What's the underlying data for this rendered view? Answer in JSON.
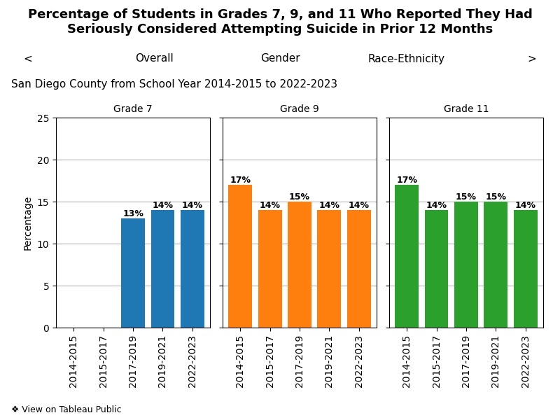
{
  "title": "Percentage of Students in Grades 7, 9, and 11 Who Reported They Had Seriously Considered Attempting Suicide in Prior 12 Months",
  "subtitle": "San Diego County from School Year 2014-2015 to 2022-2023",
  "annotations": [
    "<",
    "Overall",
    "Gender",
    "Race-Ethnicity",
    ">",
    "❖ View on Tableau Public"
  ],
  "chart_data": [
    {
      "type": "bar",
      "title": "Grade 7",
      "categories": [
        "2014-2015",
        "2015-2017",
        "2017-2019",
        "2019-2021",
        "2022-2023"
      ],
      "values": [
        null,
        null,
        13,
        14,
        14
      ],
      "value_labels": [
        null,
        null,
        "13%",
        "14%",
        "14%"
      ],
      "data_labels": true,
      "ylabel": "Percentage",
      "ylim": [
        0,
        25
      ],
      "yticks": [
        0,
        5,
        10,
        15,
        20,
        25
      ],
      "grid": true
    },
    {
      "type": "bar",
      "title": "Grade 9",
      "categories": [
        "2014-2015",
        "2015-2017",
        "2017-2019",
        "2019-2021",
        "2022-2023"
      ],
      "values": [
        17,
        14,
        15,
        14,
        14
      ],
      "value_labels": [
        "17%",
        "14%",
        "15%",
        "14%",
        "14%"
      ],
      "data_labels": true,
      "ylim": [
        0,
        25
      ],
      "yticks": [
        0,
        5,
        10,
        15,
        20,
        25
      ],
      "grid": true,
      "tick_labels": "x"
    },
    {
      "type": "bar",
      "title": "Grade 11",
      "categories": [
        "2014-2015",
        "2015-2017",
        "2017-2019",
        "2019-2021",
        "2022-2023"
      ],
      "values": [
        17,
        14,
        15,
        15,
        14
      ],
      "value_labels": [
        "17%",
        "14%",
        "15%",
        "15%",
        "14%"
      ],
      "data_labels": true,
      "ylim": [
        0,
        25
      ],
      "yticks": [
        0,
        5,
        10,
        15,
        20,
        25
      ],
      "grid": true,
      "tick_labels": "x"
    }
  ]
}
